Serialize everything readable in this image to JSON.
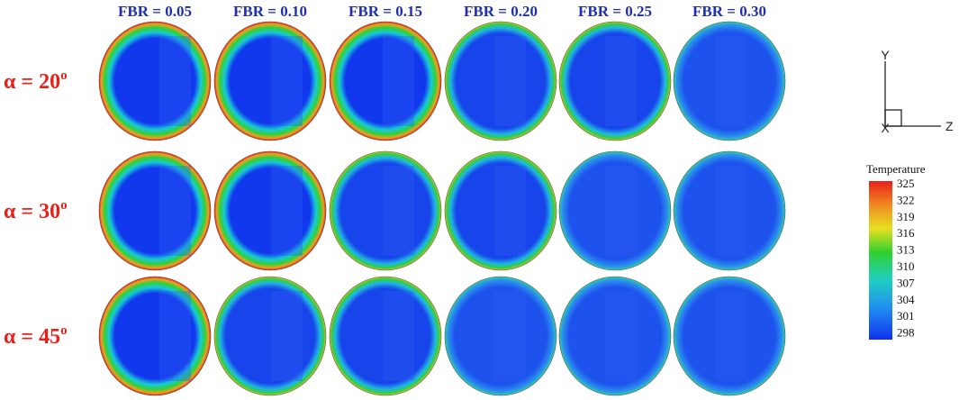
{
  "columns": [
    "FBR = 0.05",
    "FBR = 0.10",
    "FBR = 0.15",
    "FBR = 0.20",
    "FBR = 0.25",
    "FBR = 0.30"
  ],
  "rows": [
    {
      "label": "α  = 20",
      "degree": "o"
    },
    {
      "label": "α  = 30",
      "degree": "o"
    },
    {
      "label": "α  = 45",
      "degree": "o"
    }
  ],
  "axes": {
    "y": "Y",
    "z": "Z",
    "x": "X"
  },
  "colorbar": {
    "title": "Temperature",
    "labels": [
      "325",
      "322",
      "319",
      "316",
      "313",
      "310",
      "307",
      "304",
      "301",
      "298"
    ]
  }
}
